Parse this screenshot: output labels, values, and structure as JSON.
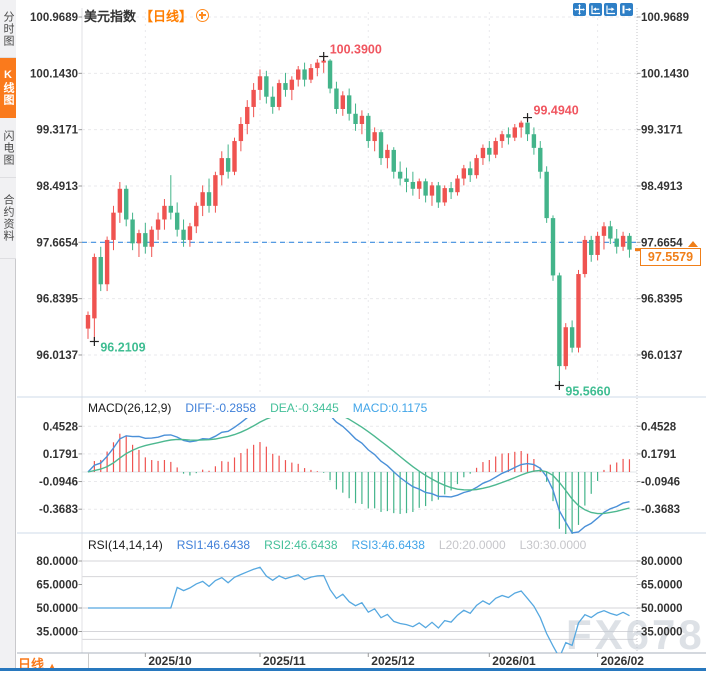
{
  "header": {
    "title": "美元指数",
    "period": "【日线】"
  },
  "toolbar": {
    "icons": [
      {
        "name": "crosshair-icon"
      },
      {
        "name": "zoom-axis-left-icon"
      },
      {
        "name": "zoom-axis-right-icon"
      },
      {
        "name": "pan-forward-icon"
      }
    ]
  },
  "sidebar": {
    "tabs": [
      {
        "label": "分时图",
        "selected": false
      },
      {
        "label": "K线图",
        "selected": true
      },
      {
        "label": "闪电图",
        "selected": false
      },
      {
        "label": "合约资料",
        "selected": false
      }
    ]
  },
  "macd_header": {
    "title": "MACD(26,12,9)",
    "diff": "DIFF:-0.2858",
    "dea": "DEA:-0.3445",
    "macd": "MACD:0.1175"
  },
  "rsi_header": {
    "title": "RSI(14,14,14)",
    "rsi1": "RSI1:46.6438",
    "rsi2": "RSI2:46.6438",
    "rsi3": "RSI3:46.6438",
    "l20": "L20:20.0000",
    "l30": "L30:30.0000"
  },
  "price_marker": {
    "value": "97.5579"
  },
  "period_button": {
    "label": "日线",
    "arrow": "▲"
  },
  "watermark": {
    "text": "FX678"
  },
  "colors": {
    "up": "#ef5350",
    "down": "#43b48a",
    "diff_line": "#4a90d8",
    "dea_line": "#4db890",
    "rsi_line": "#56a8e0",
    "accent_orange": "#f07f19",
    "sidebar_selected": "#fa7a1c",
    "ref_line_blue": "#3f8fe0",
    "annotation_red": "#f05660",
    "annotation_green": "#3fbd92",
    "toolbar_icon_blue": "#2e7fc6",
    "bottom_bar_blue": "#2878be"
  },
  "chart_data": {
    "type": "candlestick",
    "title": "美元指数 日线 (US Dollar Index, daily)",
    "price_ticks": [
      "100.9689",
      "100.1430",
      "99.3171",
      "98.4913",
      "97.6654",
      "96.8395",
      "96.0137"
    ],
    "x_labels": [
      {
        "label": "2025/10",
        "index": 9
      },
      {
        "label": "2025/11",
        "index": 27
      },
      {
        "label": "2025/12",
        "index": 44
      },
      {
        "label": "2026/01",
        "index": 63
      },
      {
        "label": "2026/02",
        "index": 80
      }
    ],
    "last_price": 97.5579,
    "reference_line": 97.6654,
    "marked_points": [
      {
        "index": 37,
        "kind": "high",
        "price": 100.39,
        "label": "100.3900"
      },
      {
        "index": 69,
        "kind": "high",
        "price": 99.494,
        "label": "99.4940"
      },
      {
        "index": 1,
        "kind": "low",
        "price": 96.2109,
        "label": "96.2109"
      },
      {
        "index": 74,
        "kind": "low",
        "price": 95.566,
        "label": "95.5660"
      }
    ],
    "candles": [
      [
        96.4,
        96.65,
        96.25,
        96.6
      ],
      [
        96.55,
        97.5,
        96.2109,
        97.45
      ],
      [
        97.45,
        97.6,
        96.95,
        97.05
      ],
      [
        97.05,
        97.75,
        96.95,
        97.7
      ],
      [
        97.7,
        98.2,
        97.55,
        98.1
      ],
      [
        98.1,
        98.55,
        97.95,
        98.45
      ],
      [
        98.45,
        98.5,
        97.9,
        98.0
      ],
      [
        98.0,
        98.1,
        97.55,
        97.65
      ],
      [
        97.65,
        97.85,
        97.45,
        97.8
      ],
      [
        97.8,
        97.95,
        97.5,
        97.6
      ],
      [
        97.6,
        97.9,
        97.45,
        97.85
      ],
      [
        97.85,
        98.1,
        97.7,
        98.0
      ],
      [
        98.0,
        98.3,
        97.85,
        98.2
      ],
      [
        98.2,
        98.65,
        98.0,
        98.1
      ],
      [
        98.1,
        98.25,
        97.75,
        97.85
      ],
      [
        97.85,
        98.0,
        97.6,
        97.7
      ],
      [
        97.7,
        97.95,
        97.6,
        97.9
      ],
      [
        97.9,
        98.25,
        97.8,
        98.2
      ],
      [
        98.2,
        98.5,
        98.05,
        98.4
      ],
      [
        98.4,
        98.6,
        98.1,
        98.2
      ],
      [
        98.2,
        98.7,
        98.1,
        98.65
      ],
      [
        98.65,
        99.0,
        98.5,
        98.9
      ],
      [
        98.9,
        99.1,
        98.6,
        98.7
      ],
      [
        98.7,
        99.2,
        98.65,
        99.15
      ],
      [
        99.15,
        99.5,
        99.0,
        99.4
      ],
      [
        99.4,
        99.75,
        99.25,
        99.65
      ],
      [
        99.65,
        100.0,
        99.5,
        99.9
      ],
      [
        99.9,
        100.2,
        99.75,
        100.1
      ],
      [
        100.1,
        100.18,
        99.7,
        99.8
      ],
      [
        99.8,
        99.95,
        99.55,
        99.65
      ],
      [
        99.65,
        100.05,
        99.6,
        100.0
      ],
      [
        100.0,
        100.15,
        99.8,
        99.9
      ],
      [
        99.9,
        100.1,
        99.75,
        100.05
      ],
      [
        100.05,
        100.25,
        99.95,
        100.2
      ],
      [
        100.2,
        100.3,
        99.95,
        100.05
      ],
      [
        100.05,
        100.28,
        100.0,
        100.22
      ],
      [
        100.22,
        100.35,
        100.1,
        100.3
      ],
      [
        100.3,
        100.39,
        100.15,
        100.33
      ],
      [
        100.33,
        100.35,
        99.85,
        99.92
      ],
      [
        99.92,
        100.02,
        99.55,
        99.62
      ],
      [
        99.62,
        99.88,
        99.52,
        99.82
      ],
      [
        99.82,
        99.92,
        99.45,
        99.55
      ],
      [
        99.55,
        99.7,
        99.3,
        99.4
      ],
      [
        99.4,
        99.6,
        99.25,
        99.52
      ],
      [
        99.52,
        99.56,
        99.05,
        99.15
      ],
      [
        99.15,
        99.35,
        99.0,
        99.28
      ],
      [
        99.28,
        99.32,
        98.8,
        98.9
      ],
      [
        98.9,
        99.1,
        98.75,
        99.02
      ],
      [
        99.02,
        99.06,
        98.6,
        98.7
      ],
      [
        98.7,
        98.85,
        98.5,
        98.6
      ],
      [
        98.6,
        98.76,
        98.4,
        98.55
      ],
      [
        98.55,
        98.7,
        98.35,
        98.45
      ],
      [
        98.45,
        98.6,
        98.3,
        98.56
      ],
      [
        98.56,
        98.6,
        98.25,
        98.35
      ],
      [
        98.35,
        98.55,
        98.2,
        98.5
      ],
      [
        98.5,
        98.55,
        98.17,
        98.25
      ],
      [
        98.25,
        98.5,
        98.2,
        98.46
      ],
      [
        98.46,
        98.55,
        98.3,
        98.4
      ],
      [
        98.4,
        98.65,
        98.35,
        98.6
      ],
      [
        98.6,
        98.8,
        98.5,
        98.75
      ],
      [
        98.75,
        98.85,
        98.55,
        98.65
      ],
      [
        98.65,
        98.95,
        98.6,
        98.9
      ],
      [
        98.9,
        99.1,
        98.8,
        99.05
      ],
      [
        99.05,
        99.15,
        98.85,
        98.95
      ],
      [
        98.95,
        99.2,
        98.9,
        99.15
      ],
      [
        99.15,
        99.3,
        99.05,
        99.25
      ],
      [
        99.25,
        99.35,
        99.1,
        99.2
      ],
      [
        99.2,
        99.4,
        99.15,
        99.35
      ],
      [
        99.35,
        99.45,
        99.2,
        99.42
      ],
      [
        99.42,
        99.494,
        99.15,
        99.25
      ],
      [
        99.25,
        99.35,
        98.95,
        99.05
      ],
      [
        99.05,
        99.15,
        98.6,
        98.7
      ],
      [
        98.7,
        98.78,
        97.95,
        98.02
      ],
      [
        98.02,
        98.06,
        97.1,
        97.18
      ],
      [
        97.18,
        97.22,
        95.566,
        95.85
      ],
      [
        95.85,
        96.48,
        95.8,
        96.42
      ],
      [
        96.42,
        96.52,
        96.05,
        96.12
      ],
      [
        96.12,
        97.26,
        96.05,
        97.2
      ],
      [
        97.2,
        97.76,
        97.15,
        97.7
      ],
      [
        97.7,
        97.76,
        97.38,
        97.48
      ],
      [
        97.48,
        97.82,
        97.4,
        97.76
      ],
      [
        97.76,
        97.96,
        97.56,
        97.9
      ],
      [
        97.9,
        97.98,
        97.64,
        97.72
      ],
      [
        97.72,
        97.86,
        97.5,
        97.6
      ],
      [
        97.6,
        97.82,
        97.54,
        97.76
      ],
      [
        97.76,
        97.8,
        97.44,
        97.5579
      ]
    ],
    "macd_panel": {
      "params": [
        26,
        12,
        9
      ],
      "diff": -0.2858,
      "dea": -0.3445,
      "macd": 0.1175,
      "ticks": [
        "0.4528",
        "0.1791",
        "-0.0946",
        "-0.3683"
      ]
    },
    "rsi_panel": {
      "params": [
        14,
        14,
        14
      ],
      "rsi1": 46.6438,
      "rsi2": 46.6438,
      "rsi3": 46.6438,
      "l20": 20.0,
      "l30": 30.0,
      "ticks": [
        "80.0000",
        "65.0000",
        "50.0000",
        "35.0000"
      ],
      "gridline_levels": [
        80,
        70,
        50,
        35,
        30
      ]
    }
  }
}
